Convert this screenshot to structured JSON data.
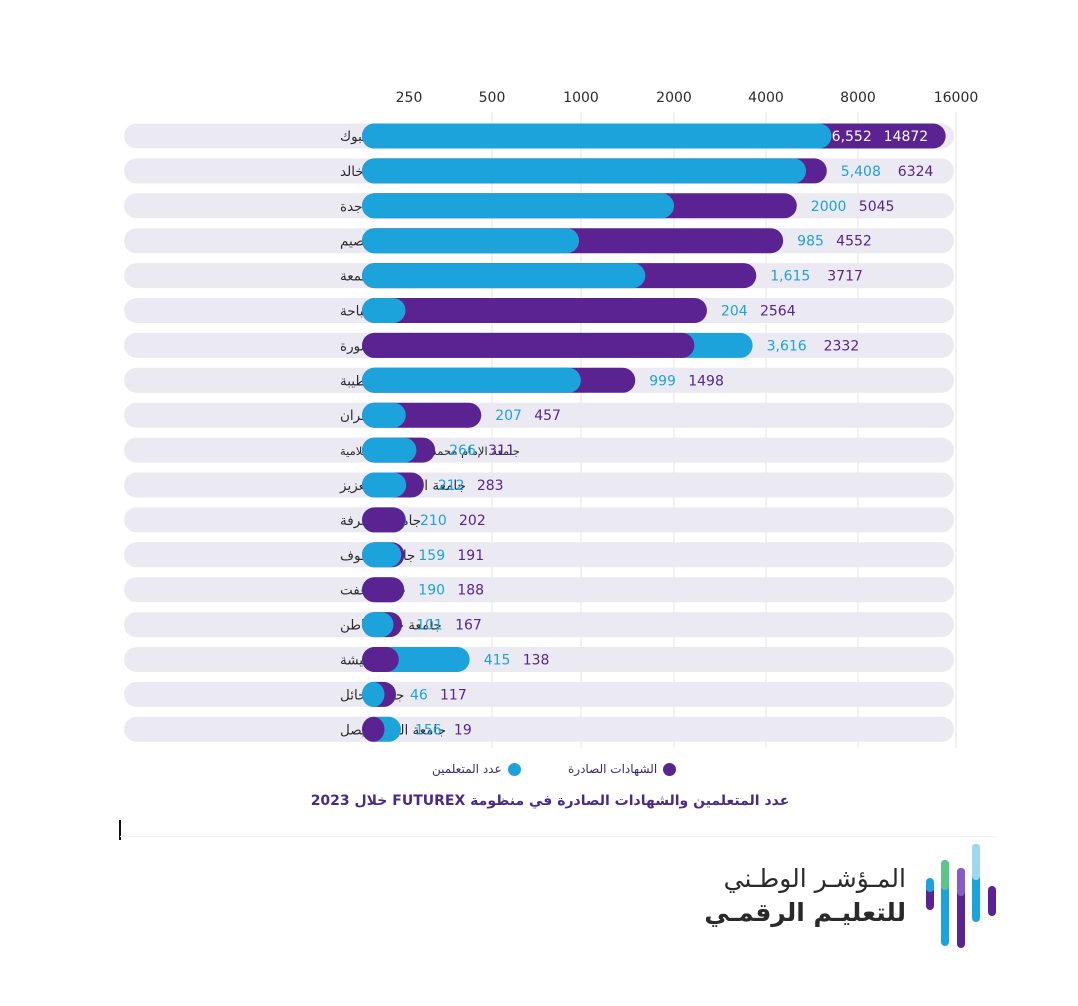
{
  "chart_data": {
    "type": "bar",
    "orientation": "horizontal",
    "scale": "log",
    "x_ticks": [
      250,
      500,
      1000,
      2000,
      4000,
      8000,
      16000
    ],
    "categories": [
      "جامعة تبوك",
      "جامعة الملك خالد",
      "جامعة جدة",
      "جامعة القصيم",
      "جامعة المجمعة",
      "جامعة الباحة",
      "جامعة الأميرة نورة",
      "جامعة طيبة",
      "جامعة نجران",
      "جامعة الإمام محمد بن سعود الإسلامية",
      "جامعة الملك عبدالعزيز",
      "جامعة المعرفة",
      "جامعة الجوف",
      "جامعة عفت",
      "جامعة حفر الباطن",
      "جامعة بيشة",
      "جامعة حائل",
      "جامعة الملك فيصل"
    ],
    "series": [
      {
        "name": "عدد المتعلمين",
        "color": "#1ca3dc",
        "values": [
          6552,
          5408,
          2000,
          985,
          1615,
          204,
          3616,
          999,
          207,
          266,
          212,
          210,
          159,
          190,
          101,
          415,
          46,
          156
        ],
        "labels": [
          "6,552",
          "5,408",
          "2000",
          "985",
          "1,615",
          "204",
          "3,616",
          "999",
          "207",
          "266",
          "212",
          "210",
          "159",
          "190",
          "101",
          "415",
          "46",
          "156"
        ]
      },
      {
        "name": "الشهادات الصادرة",
        "color": "#5a2391",
        "values": [
          14872,
          6324,
          5045,
          4552,
          3717,
          2564,
          2332,
          1498,
          457,
          311,
          283,
          202,
          191,
          188,
          167,
          138,
          117,
          19
        ],
        "labels": [
          "14872",
          "6324",
          "5045",
          "4552",
          "3717",
          "2564",
          "2332",
          "1498",
          "457",
          "311",
          "283",
          "202",
          "191",
          "188",
          "167",
          "138",
          "117",
          "19"
        ]
      }
    ],
    "legend": "bottom",
    "grid": true
  },
  "legend": {
    "issued_label": "الشهادات الصادرة",
    "learners_label": "عدد المتعلمين"
  },
  "caption": "عدد المتعلمين والشهادات الصادرة في منظومة FUTUREX خلال 2023",
  "brand": {
    "line1": "المـؤشـر الوطـني",
    "line2": "للتعليـم الرقمـي"
  },
  "colors": {
    "learners": "#1ca3dc",
    "issued": "#5a2391",
    "track": "#ebe9f2"
  }
}
